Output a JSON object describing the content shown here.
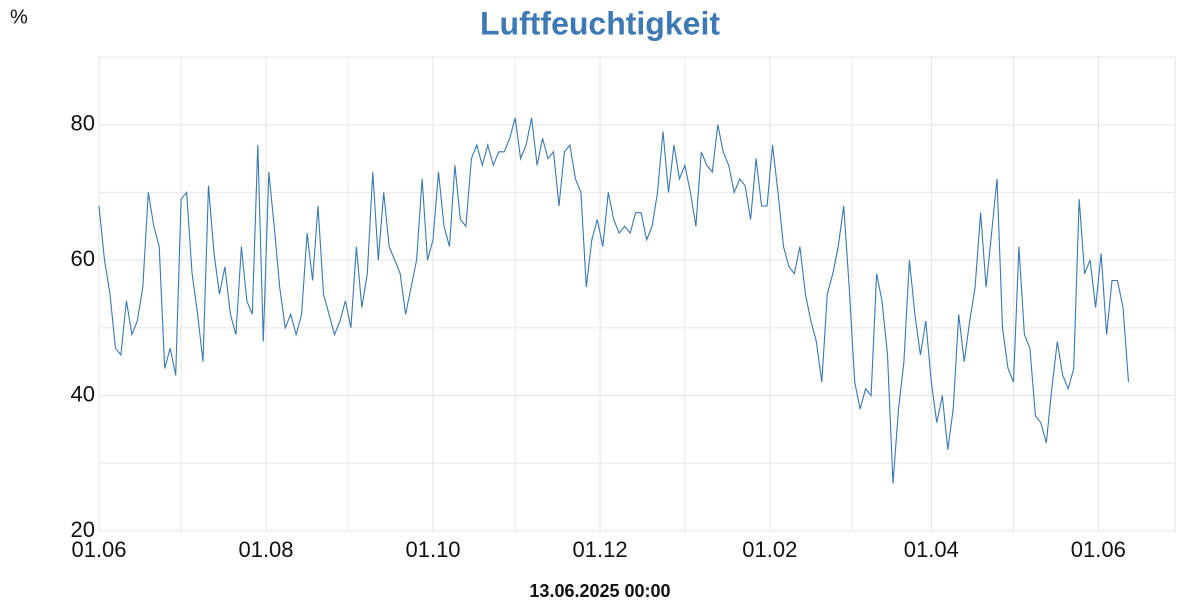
{
  "chart_data": {
    "type": "line",
    "title": "Luftfeuchtigkeit",
    "y_label": "%",
    "annotation": "13.06.2025 00:00",
    "x": [
      0,
      2,
      4,
      6,
      8,
      10,
      12,
      14,
      16,
      18,
      20,
      22,
      24,
      26,
      28,
      30,
      32,
      34,
      36,
      38,
      40,
      42,
      44,
      46,
      48,
      50,
      52,
      54,
      56,
      58,
      60,
      62,
      64,
      66,
      68,
      70,
      72,
      74,
      76,
      78,
      80,
      82,
      84,
      86,
      88,
      90,
      92,
      94,
      96,
      98,
      100,
      102,
      104,
      106,
      108,
      110,
      112,
      114,
      116,
      118,
      120,
      122,
      124,
      126,
      128,
      130,
      132,
      134,
      136,
      138,
      140,
      142,
      144,
      146,
      148,
      150,
      152,
      154,
      156,
      158,
      160,
      162,
      164,
      166,
      168,
      170,
      172,
      174,
      176,
      178,
      180,
      182,
      184,
      186,
      188,
      190,
      192,
      194,
      196,
      198,
      200,
      202,
      204,
      206,
      208,
      210,
      212,
      214,
      216,
      218,
      220,
      222,
      224,
      226,
      228,
      230,
      232,
      234,
      236,
      238,
      240,
      242,
      244,
      246,
      248,
      250,
      252,
      254,
      256,
      258,
      260,
      262,
      264,
      266,
      268,
      270,
      272,
      274,
      276,
      278,
      280,
      282,
      284,
      286,
      288,
      290,
      292,
      294,
      296,
      298,
      300,
      302,
      304,
      306,
      308,
      310,
      312,
      314,
      316,
      318,
      320,
      322,
      324,
      326,
      328,
      330,
      332,
      334,
      336,
      338,
      340,
      342,
      344,
      346,
      348,
      350,
      352,
      354,
      356,
      358,
      360,
      362,
      364,
      366,
      368,
      370,
      372,
      374,
      376
    ],
    "series": [
      {
        "name": "Luftfeuchtigkeit",
        "color": "#3a78b0",
        "values": [
          68,
          60,
          55,
          47,
          46,
          54,
          49,
          51,
          56,
          70,
          65,
          62,
          44,
          47,
          43,
          69,
          70,
          58,
          52,
          45,
          71,
          61,
          55,
          59,
          52,
          49,
          62,
          54,
          52,
          77,
          48,
          73,
          65,
          56,
          50,
          52,
          49,
          52,
          64,
          57,
          68,
          55,
          52,
          49,
          51,
          54,
          50,
          62,
          53,
          58,
          73,
          60,
          70,
          62,
          60,
          58,
          52,
          56,
          60,
          72,
          60,
          63,
          73,
          65,
          62,
          74,
          66,
          65,
          75,
          77,
          74,
          77,
          74,
          76,
          76,
          78,
          81,
          75,
          77,
          81,
          74,
          78,
          75,
          76,
          68,
          76,
          77,
          72,
          70,
          56,
          63,
          66,
          62,
          70,
          66,
          64,
          65,
          64,
          67,
          67,
          63,
          65,
          70,
          79,
          70,
          77,
          72,
          74,
          70,
          65,
          76,
          74,
          73,
          80,
          76,
          74,
          70,
          72,
          71,
          66,
          75,
          68,
          68,
          77,
          70,
          62,
          59,
          58,
          62,
          55,
          51,
          48,
          42,
          55,
          58,
          62,
          68,
          56,
          42,
          38,
          41,
          40,
          58,
          54,
          46,
          27,
          38,
          45,
          60,
          52,
          46,
          51,
          42,
          36,
          40,
          32,
          38,
          52,
          45,
          51,
          56,
          67,
          56,
          64,
          72,
          50,
          44,
          42,
          62,
          49,
          47,
          37,
          36,
          33,
          41,
          48,
          43,
          41,
          44,
          69,
          58,
          60,
          53,
          61,
          49,
          57,
          57,
          53,
          42
        ]
      }
    ],
    "xlim": [
      0,
      393
    ],
    "xticks": [
      {
        "value": 0,
        "label": "01.06"
      },
      {
        "value": 61,
        "label": "01.08"
      },
      {
        "value": 122,
        "label": "01.10"
      },
      {
        "value": 183,
        "label": "01.12"
      },
      {
        "value": 245,
        "label": "01.02"
      },
      {
        "value": 304,
        "label": "01.04"
      },
      {
        "value": 365,
        "label": "01.06"
      }
    ],
    "xminor": [
      30,
      91,
      152,
      214,
      275,
      334
    ],
    "ylim": [
      20,
      90
    ],
    "yticks": [
      20,
      40,
      60,
      80
    ],
    "yminor": [
      30,
      50,
      70
    ],
    "grid": true
  }
}
